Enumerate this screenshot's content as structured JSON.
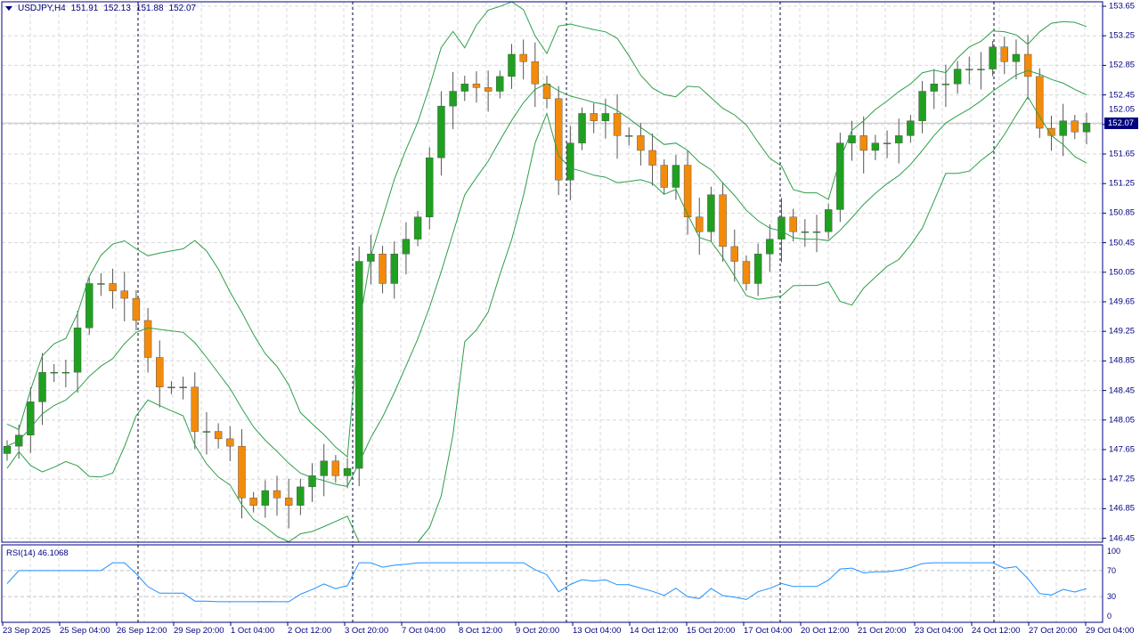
{
  "header": {
    "symbol": "USDJPY,H4",
    "open": "151.91",
    "high": "152.13",
    "low": "151.88",
    "close": "152.07"
  },
  "rsi": {
    "label": "RSI(14) 46.1068",
    "levels": [
      "100",
      "70",
      "30",
      "0"
    ]
  },
  "price_axis": [
    "153.65",
    "153.25",
    "152.85",
    "152.45",
    "152.05",
    "151.65",
    "151.25",
    "150.85",
    "150.45",
    "150.05",
    "149.65",
    "149.25",
    "148.85",
    "148.45",
    "148.05",
    "147.65",
    "147.25",
    "146.85",
    "146.45"
  ],
  "current_price": "152.07",
  "time_axis": [
    "23 Sep 2025",
    "25 Sep 04:00",
    "26 Sep 12:00",
    "29 Sep 20:00",
    "1 Oct 04:00",
    "2 Oct 12:00",
    "3 Oct 20:00",
    "7 Oct 04:00",
    "8 Oct 12:00",
    "9 Oct 20:00",
    "13 Oct 04:00",
    "14 Oct 12:00",
    "15 Oct 20:00",
    "17 Oct 04:00",
    "20 Oct 12:00",
    "21 Oct 20:00",
    "23 Oct 04:00",
    "24 Oct 12:00",
    "27 Oct 20:00",
    "29 Oct 04:00"
  ],
  "colors": {
    "bull": "#20a020",
    "bear": "#f28b0c",
    "bands": "#2e9e4a",
    "rsi": "#1e90ff",
    "axis": "#000080"
  },
  "chart_data": {
    "type": "candlestick",
    "ylim": [
      146.45,
      153.65
    ],
    "closes": [
      147.7,
      147.85,
      148.3,
      148.7,
      148.7,
      148.7,
      149.3,
      149.9,
      149.9,
      149.8,
      149.7,
      149.4,
      148.9,
      148.5,
      148.5,
      148.5,
      147.9,
      147.9,
      147.8,
      147.7,
      147.0,
      146.9,
      147.1,
      147.0,
      146.9,
      147.15,
      147.3,
      147.5,
      147.3,
      147.4,
      150.2,
      150.3,
      149.9,
      150.3,
      150.5,
      150.8,
      151.6,
      152.3,
      152.5,
      152.6,
      152.55,
      152.5,
      152.7,
      153.0,
      152.9,
      152.6,
      152.4,
      151.3,
      151.8,
      152.2,
      152.1,
      152.2,
      151.9,
      151.9,
      151.7,
      151.5,
      151.2,
      151.5,
      150.8,
      150.6,
      151.1,
      150.4,
      150.2,
      149.9,
      150.3,
      150.5,
      150.8,
      150.6,
      150.6,
      150.6,
      150.9,
      151.8,
      151.9,
      151.7,
      151.8,
      151.8,
      151.9,
      152.1,
      152.5,
      152.6,
      152.6,
      152.8,
      152.8,
      152.8,
      153.1,
      152.9,
      153.0,
      152.7,
      152.0,
      151.9,
      152.1,
      151.95,
      152.07
    ],
    "indicators": [
      "Bollinger Bands",
      "RSI(14)"
    ]
  }
}
